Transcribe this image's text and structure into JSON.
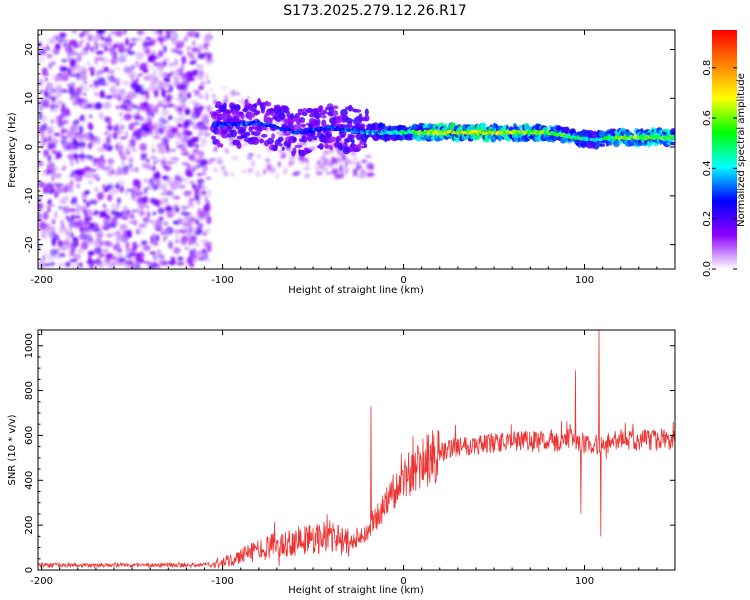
{
  "title": "S173.2025.279.12.26.R17",
  "chart_data": [
    {
      "type": "heatmap",
      "name": "spectrogram",
      "xlabel": "Height of straight line (km)",
      "ylabel": "Frequency (Hz)",
      "xlim": [
        -202,
        150
      ],
      "ylim": [
        -25,
        24
      ],
      "xticks": [
        -200,
        -100,
        0,
        100
      ],
      "xtick_labels": [
        "-200",
        "-100",
        "0",
        "100"
      ],
      "yticks": [
        20,
        10,
        0,
        -10,
        -20
      ],
      "ytick_labels": [
        "20",
        "10",
        "0",
        "-10",
        "-20"
      ],
      "colorbar": {
        "label": "Normalized spectral amplitude",
        "range": [
          0,
          0.95
        ],
        "ticks": [
          0,
          0.2,
          0.4,
          0.6,
          0.8
        ],
        "tick_labels": [
          "0.0",
          "0.2",
          "0.4",
          "0.6",
          "0.8"
        ],
        "colors": [
          "#ffffff",
          "#8b00ff",
          "#0000ff",
          "#00ffff",
          "#00ff00",
          "#ffff00",
          "#ff8000",
          "#ff0000"
        ]
      },
      "features": [
        {
          "label": "noise floor",
          "x_range": [
            -202,
            -107
          ],
          "freq_range": [
            -25,
            24
          ],
          "amplitude": 0.15
        },
        {
          "label": "signal line",
          "x": [
            -105,
            -80,
            -60,
            -40,
            -20,
            0,
            20,
            50,
            80,
            95,
            105,
            120,
            150
          ],
          "freq": [
            4.5,
            5,
            3,
            4,
            3,
            3,
            3,
            3,
            3,
            2,
            1.5,
            2,
            2
          ],
          "amplitude": [
            0.3,
            0.3,
            0.3,
            0.3,
            0.35,
            0.5,
            0.7,
            0.7,
            0.6,
            0.5,
            0.4,
            0.6,
            0.6
          ]
        }
      ]
    },
    {
      "type": "line",
      "name": "snr",
      "xlabel": "Height of straight line (km)",
      "ylabel": "SNR (10 * v/v)",
      "xlim": [
        -202,
        150
      ],
      "ylim": [
        0,
        1070
      ],
      "xticks": [
        -200,
        -100,
        0,
        100
      ],
      "xtick_labels": [
        "-200",
        "-100",
        "0",
        "100"
      ],
      "yticks": [
        0,
        200,
        400,
        600,
        800,
        1000
      ],
      "ytick_labels": [
        "0",
        "200",
        "400",
        "600",
        "800",
        "1000"
      ],
      "color": "#ee3333",
      "trend": {
        "x": [
          -202,
          -110,
          -100,
          -90,
          -80,
          -60,
          -40,
          -30,
          -20,
          -10,
          0,
          10,
          20,
          30,
          40,
          60,
          80,
          90,
          100,
          110,
          120,
          150
        ],
        "y": [
          20,
          20,
          30,
          60,
          90,
          130,
          150,
          120,
          160,
          300,
          400,
          470,
          520,
          555,
          560,
          570,
          575,
          580,
          565,
          555,
          580,
          580
        ]
      },
      "spikes": [
        {
          "x": -18,
          "y": 730
        },
        {
          "x": 95,
          "y": 890
        },
        {
          "x": 98,
          "y": 250
        },
        {
          "x": 108,
          "y": 1070
        },
        {
          "x": 109,
          "y": 150
        }
      ]
    }
  ]
}
